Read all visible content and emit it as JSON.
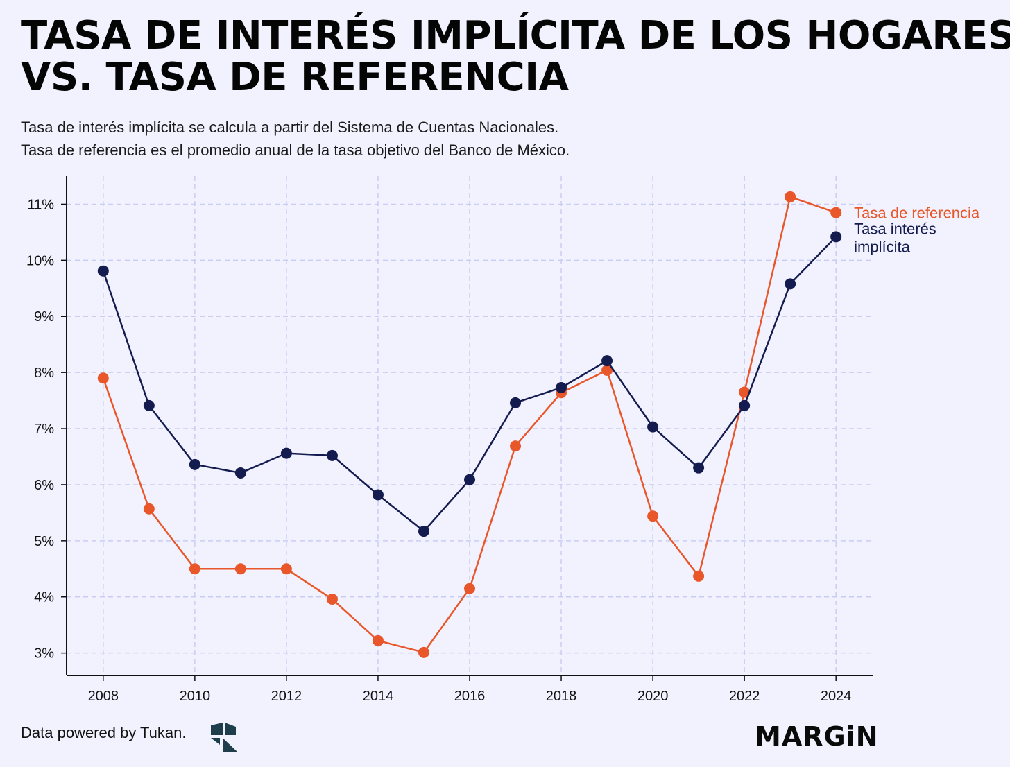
{
  "header": {
    "title_line1": "TASA DE INTERÉS IMPLÍCITA DE LOS HOGARES",
    "title_line2": "VS. TASA DE REFERENCIA",
    "subtitle_line1": "Tasa de interés implícita se calcula a partir del Sistema de Cuentas Nacionales.",
    "subtitle_line2": "Tasa de referencia es el promedio anual de la tasa objetivo del Banco de México."
  },
  "footer": {
    "source": "Data powered by Tukan.",
    "brand": "MARGiN"
  },
  "colors": {
    "background": "#f2f2fe",
    "implicita": "#141c4f",
    "referencia": "#e8562a",
    "grid": "#c9cdf3",
    "axis": "#111111"
  },
  "chart_data": {
    "type": "line",
    "title": "TASA DE INTERÉS IMPLÍCITA DE LOS HOGARES VS. TASA DE REFERENCIA",
    "xlabel": "",
    "ylabel": "",
    "x": [
      2008,
      2009,
      2010,
      2011,
      2012,
      2013,
      2014,
      2015,
      2016,
      2017,
      2018,
      2019,
      2020,
      2021,
      2022,
      2023,
      2024
    ],
    "x_ticks": [
      "2008",
      "2010",
      "2012",
      "2014",
      "2016",
      "2018",
      "2020",
      "2022",
      "2024"
    ],
    "y_ticks": [
      "3%",
      "4%",
      "5%",
      "6%",
      "7%",
      "8%",
      "9%",
      "10%",
      "11%"
    ],
    "ylim": [
      2.6,
      11.5
    ],
    "xlim": [
      2007.2,
      2024.8
    ],
    "grid": true,
    "legend": "right, inline labels at line ends",
    "series": [
      {
        "name": "Tasa de referencia",
        "label": "Tasa de referencia",
        "color": "#e8562a",
        "values": [
          7.9,
          5.57,
          4.5,
          4.5,
          4.5,
          3.96,
          3.22,
          3.01,
          4.15,
          6.69,
          7.64,
          8.04,
          5.44,
          4.37,
          7.65,
          11.13,
          10.85
        ]
      },
      {
        "name": "Tasa interés implícita",
        "label": "Tasa interés implícita",
        "color": "#141c4f",
        "values": [
          9.81,
          7.41,
          6.36,
          6.21,
          6.56,
          6.52,
          5.82,
          5.17,
          6.09,
          7.46,
          7.73,
          8.21,
          7.03,
          6.3,
          7.41,
          9.58,
          10.42
        ]
      }
    ]
  }
}
